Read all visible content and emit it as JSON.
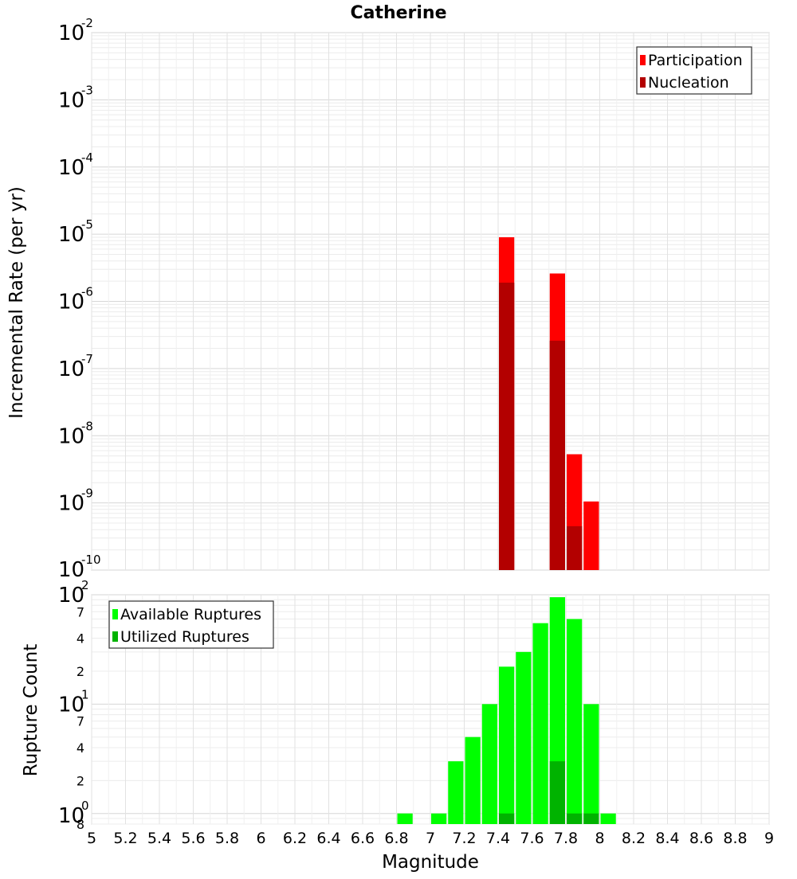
{
  "chart_data": {
    "title": "Catherine",
    "x_axis": {
      "label": "Magnitude",
      "range": [
        5,
        9
      ],
      "ticks": [
        "5",
        "5.2",
        "5.4",
        "5.6",
        "5.8",
        "6",
        "6.2",
        "6.4",
        "6.6",
        "6.8",
        "7",
        "7.2",
        "7.4",
        "7.6",
        "7.8",
        "8",
        "8.2",
        "8.4",
        "8.6",
        "8.8",
        "9"
      ]
    },
    "panels": [
      {
        "type": "bar",
        "y_scale": "log",
        "ylabel": "Incremental Rate (per yr)",
        "ylim": [
          1e-10,
          0.01
        ],
        "y_tick_labels": [
          {
            "base": "10",
            "exp": "-10",
            "value": 1e-10
          },
          {
            "base": "10",
            "exp": "-9",
            "value": 1e-09
          },
          {
            "base": "10",
            "exp": "-8",
            "value": 1e-08
          },
          {
            "base": "10",
            "exp": "-7",
            "value": 1e-07
          },
          {
            "base": "10",
            "exp": "-6",
            "value": 1e-06
          },
          {
            "base": "10",
            "exp": "-5",
            "value": 1e-05
          },
          {
            "base": "10",
            "exp": "-4",
            "value": 0.0001
          },
          {
            "base": "10",
            "exp": "-3",
            "value": 0.001
          },
          {
            "base": "10",
            "exp": "-2",
            "value": 0.01
          }
        ],
        "legend": {
          "position": "top-right",
          "entries": [
            "Participation",
            "Nucleation"
          ]
        },
        "grid": true,
        "series": [
          {
            "name": "Participation",
            "color": "#ff0000",
            "x": [
              7.45,
              7.75,
              7.85,
              7.95
            ],
            "values": [
              9e-06,
              2.6e-06,
              5.3e-09,
              1.05e-09
            ]
          },
          {
            "name": "Nucleation",
            "color": "#b30000",
            "x": [
              7.45,
              7.75,
              7.85
            ],
            "values": [
              1.9e-06,
              2.6e-07,
              4.5e-10
            ]
          }
        ]
      },
      {
        "type": "bar",
        "y_scale": "log",
        "ylabel": "Rupture Count",
        "ylim": [
          0.8,
          100
        ],
        "y_tick_labels": [
          {
            "base": "8",
            "exp": "",
            "value": 0.8,
            "minor": true
          },
          {
            "base": "10",
            "exp": "0",
            "value": 1
          },
          {
            "base": "2",
            "exp": "",
            "value": 2,
            "minor": true
          },
          {
            "base": "4",
            "exp": "",
            "value": 4,
            "minor": true
          },
          {
            "base": "7",
            "exp": "",
            "value": 7,
            "minor": true
          },
          {
            "base": "10",
            "exp": "1",
            "value": 10
          },
          {
            "base": "2",
            "exp": "",
            "value": 20,
            "minor": true
          },
          {
            "base": "4",
            "exp": "",
            "value": 40,
            "minor": true
          },
          {
            "base": "7",
            "exp": "",
            "value": 70,
            "minor": true
          },
          {
            "base": "10",
            "exp": "2",
            "value": 100
          }
        ],
        "legend": {
          "position": "top-left",
          "entries": [
            "Available Ruptures",
            "Utilized Ruptures"
          ]
        },
        "grid": true,
        "series": [
          {
            "name": "Available Ruptures",
            "color": "#00ff00",
            "x": [
              6.85,
              7.05,
              7.15,
              7.25,
              7.35,
              7.45,
              7.55,
              7.65,
              7.75,
              7.85,
              7.95,
              8.05
            ],
            "values": [
              1,
              1,
              3,
              5,
              10,
              22,
              30,
              55,
              95,
              60,
              10,
              1
            ]
          },
          {
            "name": "Utilized Ruptures",
            "color": "#00b300",
            "x": [
              7.45,
              7.75,
              7.85,
              7.95
            ],
            "values": [
              1,
              3,
              1,
              1
            ]
          }
        ]
      }
    ]
  }
}
